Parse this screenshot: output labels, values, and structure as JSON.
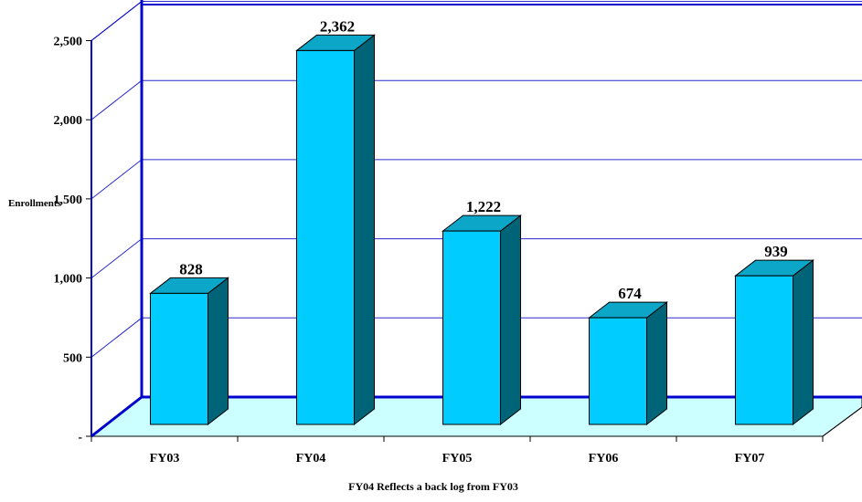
{
  "chart_data": {
    "type": "bar",
    "style": "3d",
    "categories": [
      "FY03",
      "FY04",
      "FY05",
      "FY06",
      "FY07"
    ],
    "values": [
      828,
      2362,
      1222,
      674,
      939
    ],
    "value_labels": [
      "828",
      "2,362",
      "1,222",
      "674",
      "939"
    ],
    "ylabel": "Enrollments",
    "xlabel": "FY04 Reflects a back log from FY03",
    "ylim": [
      0,
      2500
    ],
    "y_ticks": [
      {
        "value": 0,
        "label": "-"
      },
      {
        "value": 500,
        "label": "500"
      },
      {
        "value": 1000,
        "label": "1,000"
      },
      {
        "value": 1500,
        "label": "1,500"
      },
      {
        "value": 2000,
        "label": "2,000"
      },
      {
        "value": 2500,
        "label": "2,500"
      }
    ],
    "grid": true,
    "legend": "none",
    "colors": {
      "bar_front": "#00ccff",
      "bar_top": "#0ba6c8",
      "bar_side": "#006478",
      "floor": "#ccffff",
      "grid": "#2a2ad0",
      "axis": "#0000cc"
    }
  }
}
